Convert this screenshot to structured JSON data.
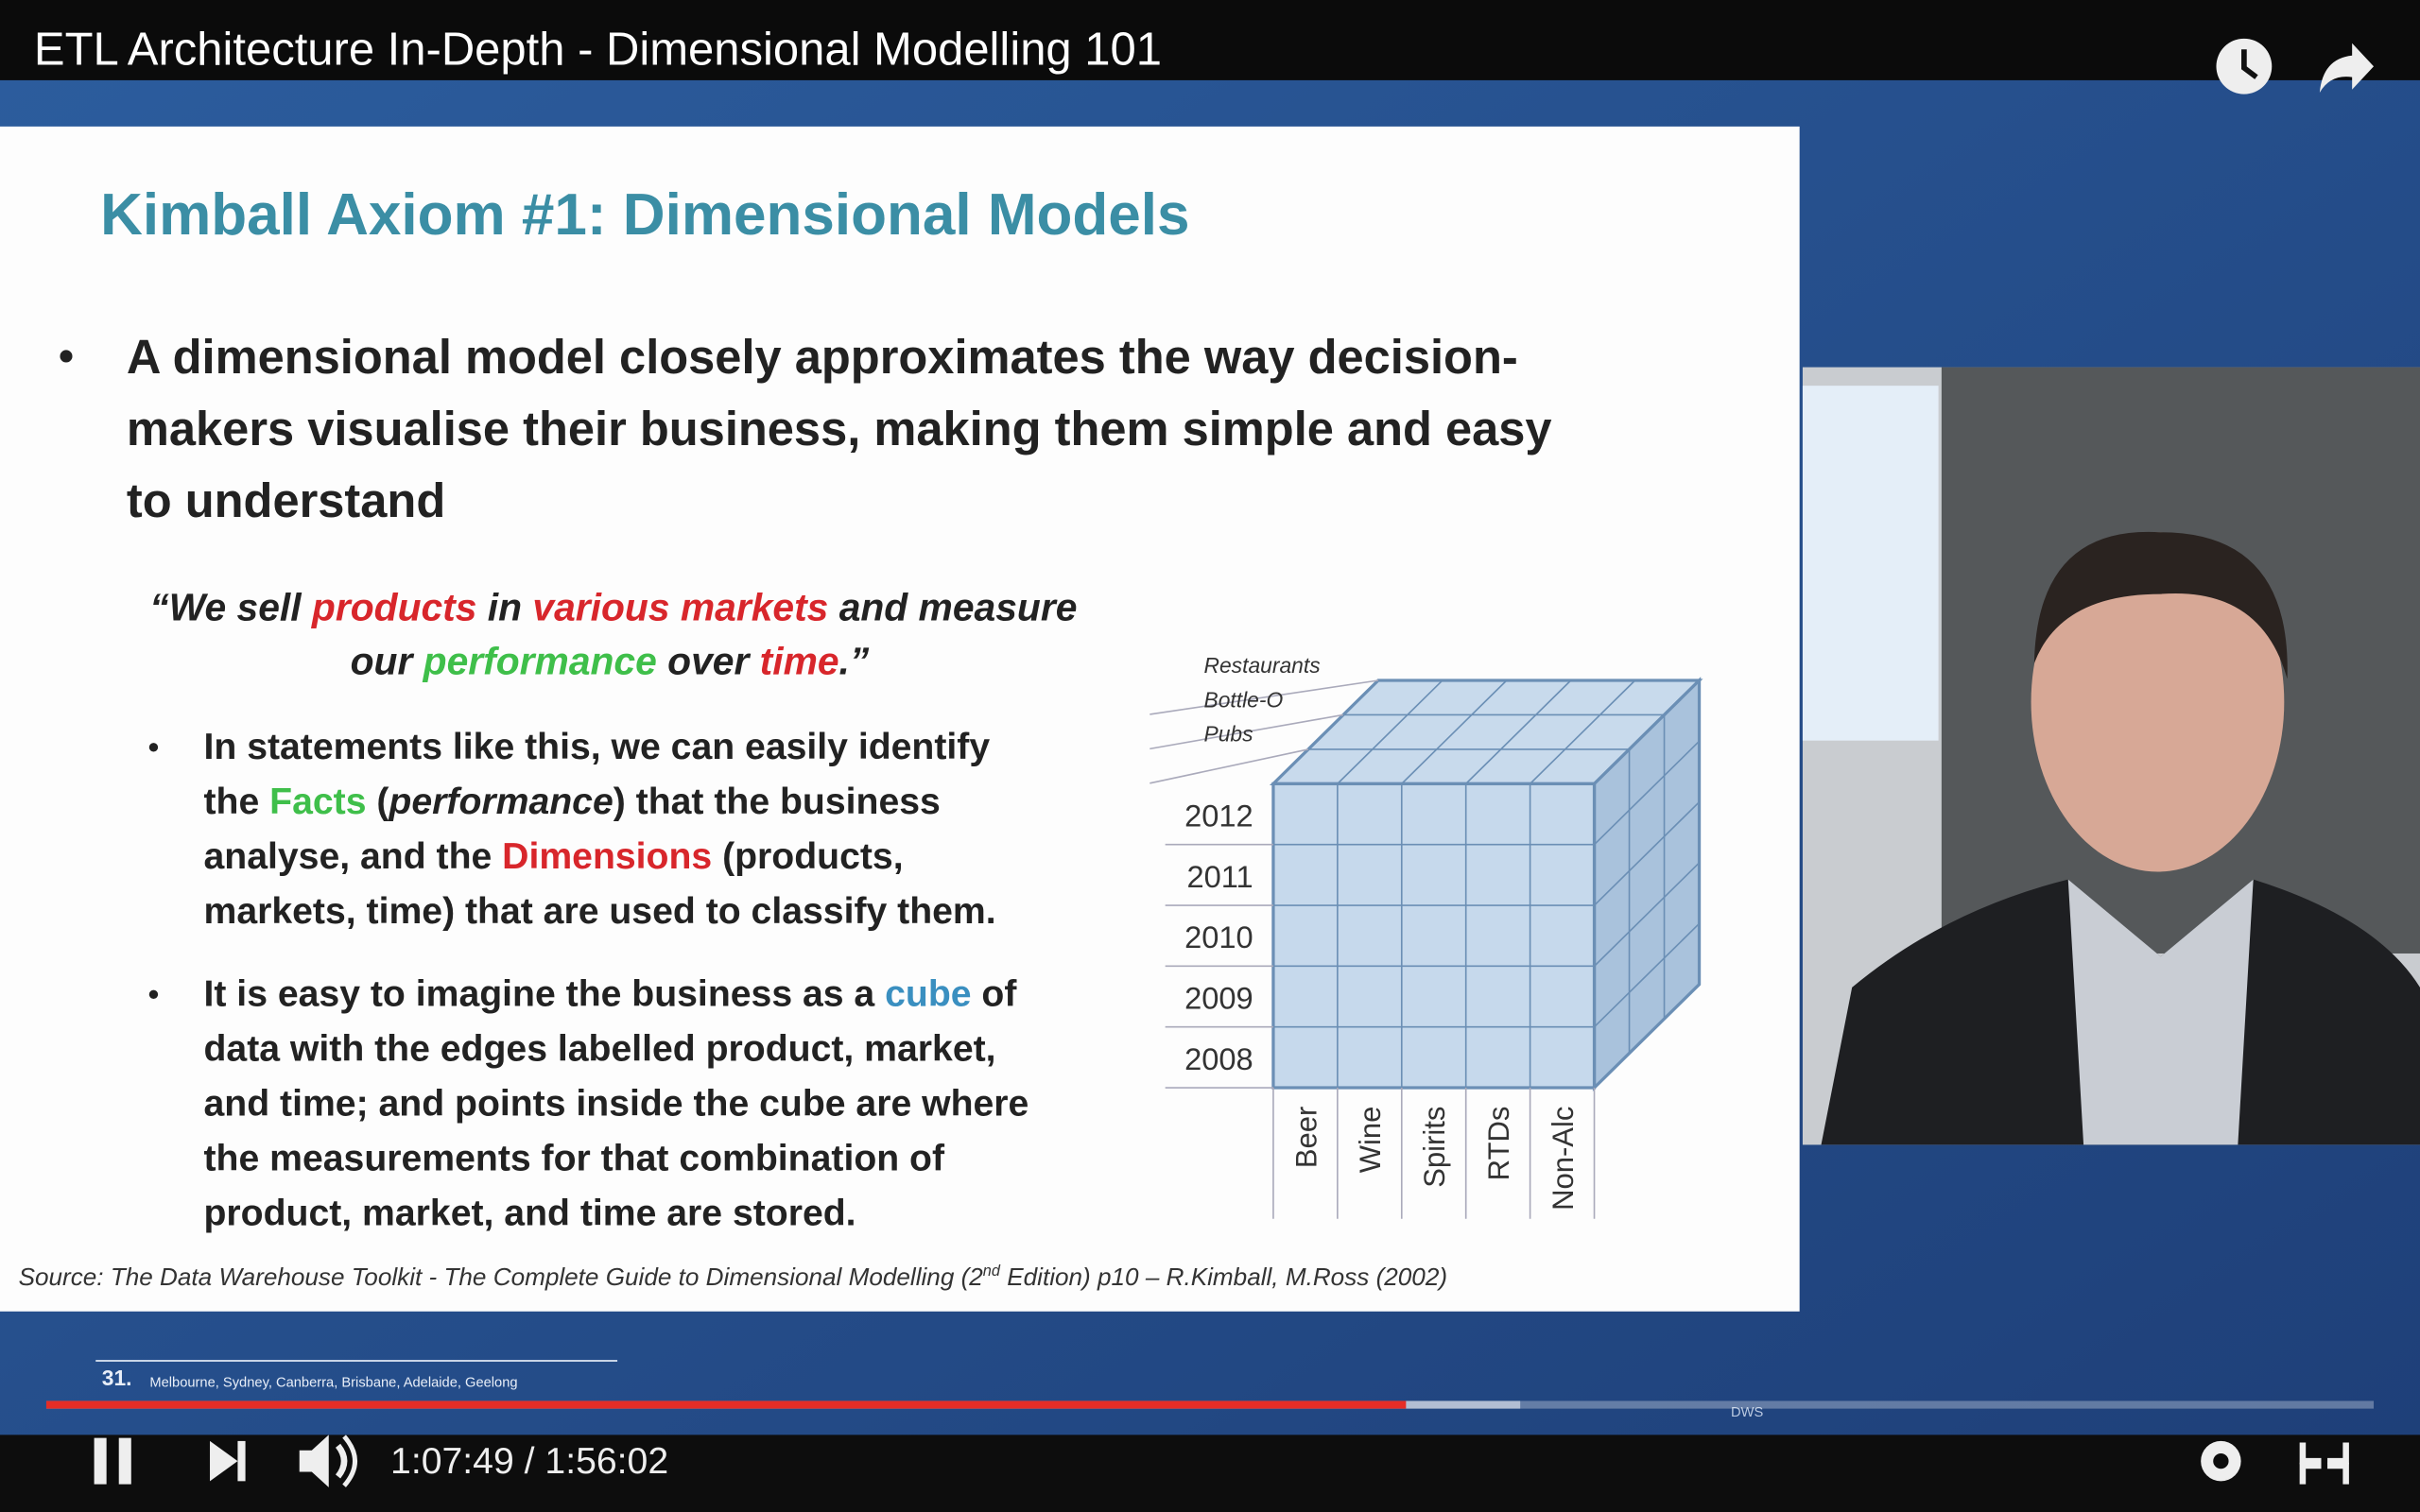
{
  "video": {
    "title": "ETL Architecture In-Depth - Dimensional Modelling 101",
    "current_time": "1:07:49",
    "separator": "/",
    "duration": "1:56:02"
  },
  "slide": {
    "title": "Kimball Axiom #1: Dimensional Models",
    "main_bullet": [
      "A dimensional model closely approximates the way decision-",
      "makers visualise their business, making them simple and easy",
      "to understand"
    ],
    "quote": [
      [
        "“We sell ",
        "products",
        " in ",
        "various markets",
        " and measure"
      ],
      [
        "our ",
        "performance",
        " over ",
        "time",
        ".”"
      ]
    ],
    "bullet_1": [
      [
        "In statements like this, we can easily identify"
      ],
      [
        "the ",
        "Facts",
        " (",
        "performance",
        ") that the business"
      ],
      [
        "analyse, and the ",
        "Dimensions",
        " (products,"
      ],
      [
        "markets, time) that are used to classify them."
      ]
    ],
    "bullet_2": [
      [
        "It is easy to imagine the business as a ",
        "cube",
        " of"
      ],
      [
        "data with the edges labelled product, market,"
      ],
      [
        "and time; and points inside the cube are where"
      ],
      [
        "the measurements for that combination of"
      ],
      [
        "product, market, and time are stored."
      ]
    ],
    "cube": {
      "markets": [
        "Restaurants",
        "Bottle-O",
        "Pubs"
      ],
      "years": [
        "2012",
        "2011",
        "2010",
        "2009",
        "2008"
      ],
      "products": [
        "Beer",
        "Wine",
        "Spirits",
        "RTDs",
        "Non-Alc"
      ]
    },
    "source": [
      "Source: The Data Warehouse Toolkit  - The Complete Guide to Dimensional Modelling (2",
      "nd",
      " Edition) p10 – R.Kimball, M.Ross (2002)"
    ],
    "footer": {
      "number": "31.",
      "cities": "Melbourne, Sydney, Canberra, Brisbane, Adelaide, Geelong",
      "logo": "DWS"
    }
  }
}
